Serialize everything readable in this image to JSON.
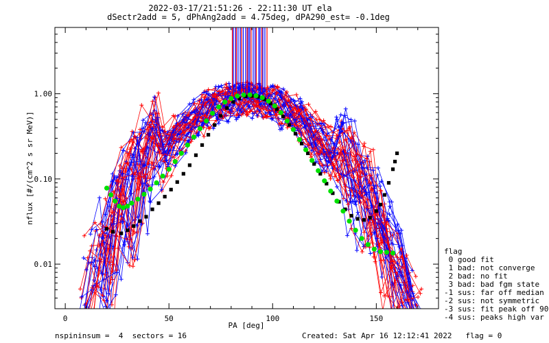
{
  "chart_data": {
    "type": "line",
    "title": "2022-03-17/21:51:26 - 22:11:30 UT ela",
    "subtitle": "dSectr2add = 5, dPhAng2add = 4.75deg, dPA290_est=  -0.1deg",
    "xlabel": "PA [deg]",
    "ylabel": "nflux [#/(cm^2 s sr MeV)]",
    "xlim": [
      -5,
      180
    ],
    "ylim": [
      0.003,
      6.0
    ],
    "yscale": "log",
    "x_ticks": [
      0,
      50,
      100,
      150
    ],
    "x_tick_labels": [
      "0",
      "50",
      "100",
      "150"
    ],
    "y_ticks": [
      0.01,
      0.1,
      1.0
    ],
    "y_tick_labels": [
      "0.01",
      "0.10",
      "1.00"
    ],
    "grid": false,
    "colors": {
      "red": "#ff0000",
      "blue": "#0000ff",
      "green": "#00e000",
      "black": "#000000"
    },
    "series": [
      {
        "color": "black",
        "style": "dots",
        "points": [
          [
            20,
            0.026
          ],
          [
            23,
            0.024
          ],
          [
            27,
            0.023
          ],
          [
            30,
            0.025
          ],
          [
            33,
            0.028
          ],
          [
            36,
            0.032
          ],
          [
            39,
            0.036
          ],
          [
            42,
            0.044
          ],
          [
            45,
            0.052
          ],
          [
            48,
            0.062
          ],
          [
            51,
            0.075
          ],
          [
            54,
            0.092
          ],
          [
            57,
            0.115
          ],
          [
            60,
            0.145
          ],
          [
            63,
            0.19
          ],
          [
            66,
            0.25
          ],
          [
            69,
            0.33
          ],
          [
            72,
            0.43
          ],
          [
            75,
            0.55
          ],
          [
            78,
            0.68
          ],
          [
            81,
            0.8
          ],
          [
            84,
            0.88
          ],
          [
            87,
            0.93
          ],
          [
            90,
            0.94
          ],
          [
            93,
            0.92
          ],
          [
            96,
            0.86
          ],
          [
            99,
            0.77
          ],
          [
            102,
            0.66
          ],
          [
            105,
            0.54
          ],
          [
            108,
            0.43
          ],
          [
            111,
            0.34
          ],
          [
            114,
            0.26
          ],
          [
            117,
            0.2
          ],
          [
            120,
            0.15
          ],
          [
            123,
            0.115
          ],
          [
            126,
            0.088
          ],
          [
            129,
            0.068
          ],
          [
            132,
            0.054
          ],
          [
            135,
            0.044
          ],
          [
            138,
            0.037
          ],
          [
            141,
            0.034
          ],
          [
            144,
            0.033
          ],
          [
            147,
            0.035
          ],
          [
            150,
            0.042
          ],
          [
            152,
            0.05
          ],
          [
            154,
            0.065
          ],
          [
            156,
            0.09
          ],
          [
            158,
            0.13
          ],
          [
            159,
            0.16
          ],
          [
            160,
            0.2
          ]
        ]
      },
      {
        "color": "green",
        "style": "dots",
        "points": [
          [
            20,
            0.078
          ],
          [
            22,
            0.065
          ],
          [
            24,
            0.055
          ],
          [
            26,
            0.048
          ],
          [
            28,
            0.046
          ],
          [
            30,
            0.048
          ],
          [
            32,
            0.052
          ],
          [
            35,
            0.058
          ],
          [
            38,
            0.066
          ],
          [
            41,
            0.076
          ],
          [
            44,
            0.09
          ],
          [
            47,
            0.108
          ],
          [
            50,
            0.13
          ],
          [
            53,
            0.16
          ],
          [
            56,
            0.2
          ],
          [
            59,
            0.25
          ],
          [
            62,
            0.31
          ],
          [
            65,
            0.39
          ],
          [
            68,
            0.48
          ],
          [
            71,
            0.59
          ],
          [
            74,
            0.7
          ],
          [
            77,
            0.8
          ],
          [
            80,
            0.88
          ],
          [
            83,
            0.94
          ],
          [
            86,
            0.97
          ],
          [
            89,
            0.97
          ],
          [
            92,
            0.95
          ],
          [
            95,
            0.9
          ],
          [
            98,
            0.82
          ],
          [
            101,
            0.72
          ],
          [
            104,
            0.6
          ],
          [
            107,
            0.48
          ],
          [
            110,
            0.38
          ],
          [
            113,
            0.29
          ],
          [
            116,
            0.22
          ],
          [
            119,
            0.165
          ],
          [
            122,
            0.125
          ],
          [
            125,
            0.095
          ],
          [
            128,
            0.072
          ],
          [
            131,
            0.055
          ],
          [
            134,
            0.042
          ],
          [
            137,
            0.032
          ],
          [
            140,
            0.025
          ],
          [
            143,
            0.02
          ],
          [
            146,
            0.017
          ],
          [
            149,
            0.015
          ],
          [
            152,
            0.014
          ],
          [
            155,
            0.0138
          ],
          [
            158,
            0.0135
          ]
        ]
      }
    ],
    "legend_title": "flag",
    "legend": [
      " 0 good fit",
      " 1 bad: not converge",
      " 2 bad: no fit",
      " 3 bad: bad fgm state",
      "-1 sus: far off median",
      "-2 sus: not symmetric",
      "-3 sus: fit peak off 90",
      "-4 sus: peaks high var"
    ],
    "legend_position": "right",
    "footer_left": "nspininsum =  4  sectors = 16",
    "footer_right": "Created: Sat Apr 16 12:12:41 2022   flag = 0"
  }
}
